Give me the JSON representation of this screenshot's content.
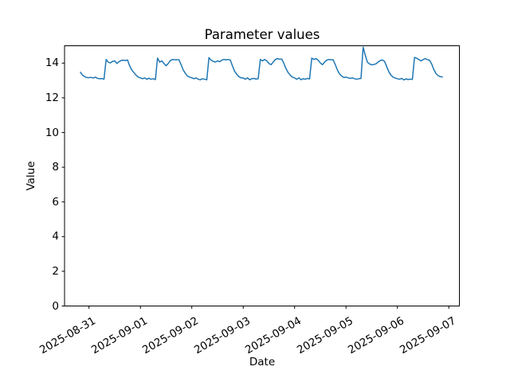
{
  "chart_data": {
    "type": "line",
    "title": "Parameter values",
    "xlabel": "Date",
    "ylabel": "Value",
    "ylim": [
      0,
      15
    ],
    "yticks": [
      0,
      2,
      4,
      6,
      8,
      10,
      12,
      14
    ],
    "xtick_labels": [
      "2025-08-31",
      "2025-09-01",
      "2025-09-02",
      "2025-09-03",
      "2025-09-04",
      "2025-09-05",
      "2025-09-06",
      "2025-09-07"
    ],
    "grid": false,
    "legend": "none",
    "line_color": "#1f77b4",
    "line_width": 1.5,
    "series": [
      {
        "name": "Parameter values",
        "start": "2025-08-30 20:00",
        "step_hours": 1,
        "values": [
          13.47,
          13.3,
          13.22,
          13.17,
          13.16,
          13.18,
          13.14,
          13.19,
          13.12,
          13.1,
          13.11,
          13.07,
          14.21,
          14.05,
          14.01,
          14.1,
          14.13,
          13.98,
          14.08,
          14.15,
          14.17,
          14.15,
          14.18,
          13.83,
          13.6,
          13.45,
          13.3,
          13.19,
          13.15,
          13.1,
          13.15,
          13.07,
          13.13,
          13.07,
          13.1,
          13.05,
          14.29,
          14.06,
          14.13,
          13.98,
          13.85,
          13.98,
          14.15,
          14.21,
          14.19,
          14.2,
          14.19,
          13.91,
          13.6,
          13.41,
          13.25,
          13.19,
          13.15,
          13.1,
          13.15,
          13.07,
          13.04,
          13.1,
          13.07,
          13.04,
          14.32,
          14.17,
          14.1,
          14.06,
          14.13,
          14.08,
          14.17,
          14.21,
          14.19,
          14.21,
          14.17,
          13.83,
          13.53,
          13.35,
          13.22,
          13.15,
          13.15,
          13.07,
          13.15,
          13.04,
          13.1,
          13.12,
          13.08,
          13.1,
          14.21,
          14.13,
          14.21,
          14.13,
          13.98,
          13.91,
          14.06,
          14.21,
          14.26,
          14.22,
          14.24,
          13.98,
          13.68,
          13.45,
          13.3,
          13.19,
          13.15,
          13.07,
          13.15,
          13.04,
          13.1,
          13.07,
          13.12,
          13.09,
          14.29,
          14.21,
          14.26,
          14.17,
          14.01,
          13.91,
          14.06,
          14.17,
          14.21,
          14.19,
          14.2,
          13.91,
          13.6,
          13.37,
          13.25,
          13.17,
          13.19,
          13.15,
          13.12,
          13.15,
          13.1,
          13.07,
          13.1,
          13.12,
          14.92,
          14.45,
          14.05,
          13.95,
          13.9,
          13.92,
          13.96,
          14.06,
          14.15,
          14.18,
          14.1,
          13.8,
          13.5,
          13.3,
          13.19,
          13.14,
          13.1,
          13.07,
          13.12,
          13.03,
          13.09,
          13.05,
          13.08,
          13.06,
          14.33,
          14.28,
          14.21,
          14.13,
          14.2,
          14.26,
          14.2,
          14.17,
          13.95,
          13.63,
          13.4,
          13.28,
          13.22,
          13.2
        ]
      }
    ]
  }
}
